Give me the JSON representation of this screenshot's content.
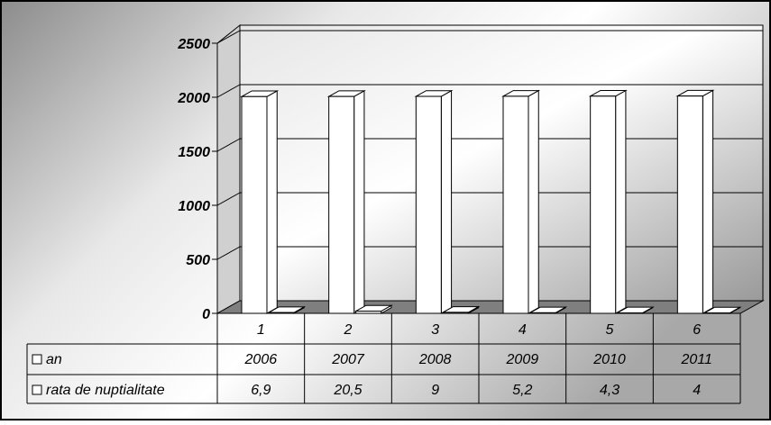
{
  "chart_data": {
    "type": "bar",
    "categories": [
      "1",
      "2",
      "3",
      "4",
      "5",
      "6"
    ],
    "series": [
      {
        "name": "an",
        "values": [
          2006,
          2007,
          2008,
          2009,
          2010,
          2011
        ]
      },
      {
        "name": "rata de nuptialitate",
        "values": [
          6.9,
          20.5,
          9,
          5.2,
          4.3,
          4
        ]
      }
    ],
    "table_rows": [
      {
        "label": "an",
        "values": [
          "2006",
          "2007",
          "2008",
          "2009",
          "2010",
          "2011"
        ]
      },
      {
        "label": "rata de nuptialitate",
        "values": [
          "6,9",
          "20,5",
          "9",
          "5,2",
          "4,3",
          "4"
        ]
      }
    ],
    "ylim": [
      0,
      2500
    ],
    "yticks": [
      "0",
      "500",
      "1000",
      "1500",
      "2000",
      "2500"
    ],
    "grid": true,
    "legend": "data-table-below",
    "colors": {
      "bar_fill": "#ffffff",
      "floor": "#7f7f7f",
      "wall_dark": "#8a8a8a",
      "wall_light": "#ffffff"
    }
  }
}
